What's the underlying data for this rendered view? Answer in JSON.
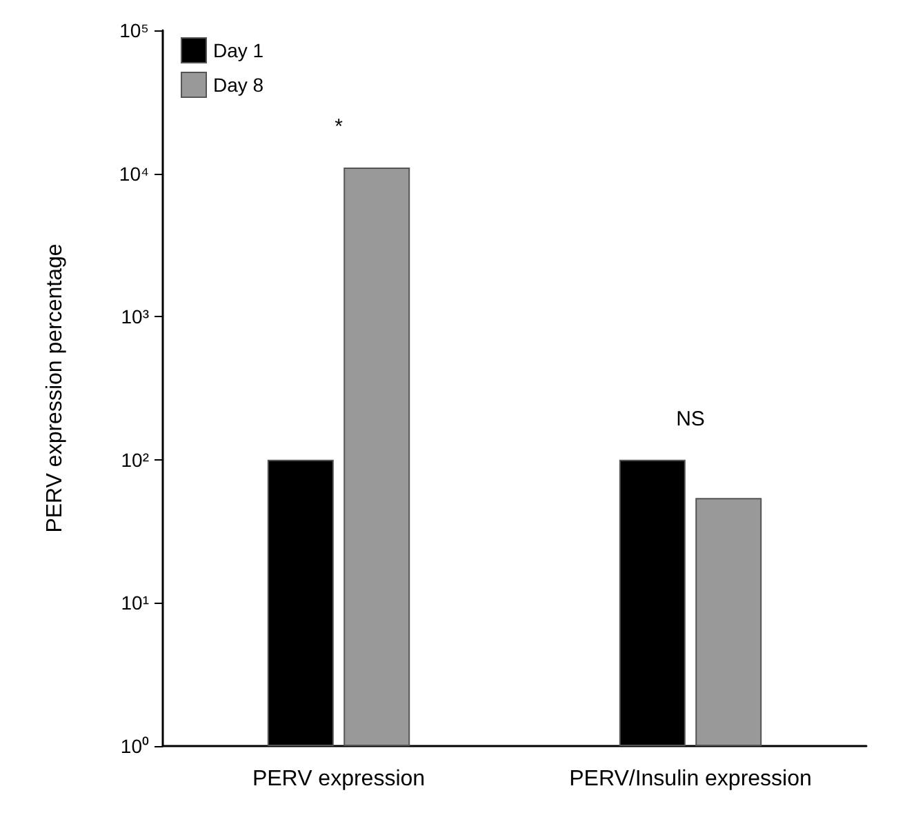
{
  "chart_data": {
    "type": "bar",
    "ylabel": "PERV expression percentage",
    "categories": [
      "PERV expression",
      "PERV/Insulin expression"
    ],
    "series": [
      {
        "name": "Day 1",
        "color": "#000000",
        "values": [
          100,
          100
        ]
      },
      {
        "name": "Day 8",
        "color": "#999999",
        "values": [
          11000,
          54
        ]
      }
    ],
    "log": "y",
    "ylim": [
      1,
      100000
    ],
    "yticks": [
      {
        "value": 1,
        "label": "10⁰"
      },
      {
        "value": 10,
        "label": "10¹"
      },
      {
        "value": 100,
        "label": "10²"
      },
      {
        "value": 1000,
        "label": "10³"
      },
      {
        "value": 10000,
        "label": "10⁴"
      },
      {
        "value": 100000,
        "label": "10⁵"
      }
    ],
    "legend": "top left",
    "grid": false,
    "annotations": [
      "*",
      "NS"
    ]
  }
}
